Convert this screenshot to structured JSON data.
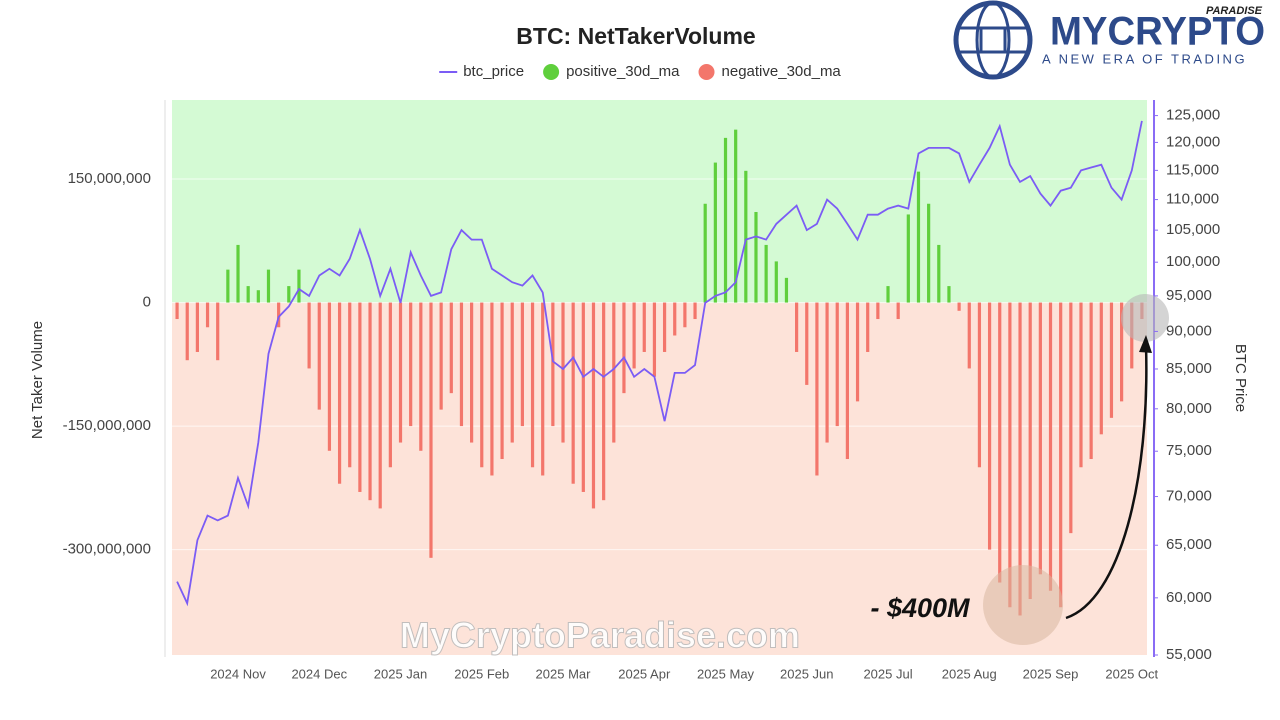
{
  "chart_data": {
    "type": "bar-line",
    "title": "BTC: NetTakerVolume",
    "y_label": "Net Taker Volume",
    "y2_label": "BTC Price",
    "y2_log": true,
    "positive_region_color": "#d4fad4",
    "negative_region_color": "#fde3d9",
    "categories": [
      null,
      null,
      null,
      null,
      null,
      null,
      "2024 Nov",
      null,
      null,
      null,
      null,
      null,
      null,
      null,
      "2024 Dec",
      null,
      null,
      null,
      null,
      null,
      null,
      null,
      "2025 Jan",
      null,
      null,
      null,
      null,
      null,
      null,
      null,
      "2025 Feb",
      null,
      null,
      null,
      null,
      null,
      null,
      null,
      "2025 Mar",
      null,
      null,
      null,
      null,
      null,
      null,
      null,
      "2025 Apr",
      null,
      null,
      null,
      null,
      null,
      null,
      null,
      "2025 May",
      null,
      null,
      null,
      null,
      null,
      null,
      null,
      "2025 Jun",
      null,
      null,
      null,
      null,
      null,
      null,
      null,
      "2025 Jul",
      null,
      null,
      null,
      null,
      null,
      null,
      null,
      "2025 Aug",
      null,
      null,
      null,
      null,
      null,
      null,
      null,
      "2025 Sep",
      null,
      null,
      null,
      null,
      null,
      null,
      null,
      "2025 Oct",
      null
    ],
    "series": [
      {
        "name": "btc_price",
        "color": "#7b5cf5",
        "kind": "line",
        "axis": "y2",
        "values": [
          61500,
          59500,
          65500,
          68000,
          67500,
          68000,
          72000,
          69000,
          76000,
          87000,
          92000,
          93500,
          96000,
          95000,
          98000,
          99000,
          98000,
          100500,
          105000,
          100500,
          95000,
          99000,
          94000,
          101500,
          98000,
          95000,
          95500,
          102000,
          105000,
          103500,
          103500,
          99000,
          98000,
          97000,
          96500,
          98000,
          95500,
          86000,
          85000,
          86500,
          84000,
          85000,
          84000,
          85000,
          86500,
          84000,
          85000,
          84000,
          78500,
          84500,
          84500,
          85500,
          94000,
          95000,
          95500,
          97000,
          103500,
          104000,
          103500,
          106000,
          107500,
          109000,
          105000,
          106000,
          110000,
          108500,
          106000,
          103500,
          107500,
          107500,
          108500,
          109000,
          108500,
          118000,
          119000,
          119000,
          119000,
          118000,
          113000,
          116000,
          119000,
          123000,
          116000,
          113000,
          114000,
          111000,
          109000,
          111500,
          112000,
          115000,
          115500,
          116000,
          112000,
          110000,
          115000,
          124000
        ]
      },
      {
        "name": "positive_30d_ma",
        "color": "#5fcf3c",
        "kind": "bar",
        "values": [
          null,
          null,
          null,
          null,
          null,
          40000000,
          70000000,
          20000000,
          15000000,
          40000000,
          null,
          20000000,
          40000000,
          null,
          null,
          null,
          null,
          null,
          null,
          null,
          null,
          null,
          null,
          null,
          null,
          null,
          null,
          null,
          null,
          null,
          null,
          null,
          null,
          null,
          null,
          null,
          null,
          null,
          null,
          null,
          null,
          null,
          null,
          null,
          null,
          null,
          null,
          null,
          null,
          null,
          null,
          null,
          120000000,
          170000000,
          200000000,
          210000000,
          160000000,
          110000000,
          70000000,
          50000000,
          30000000,
          null,
          null,
          null,
          null,
          null,
          null,
          null,
          null,
          null,
          20000000,
          null,
          107000000,
          159000000,
          120000000,
          70000000,
          20000000,
          null,
          null,
          null,
          null,
          null,
          null,
          null,
          null,
          null,
          null,
          null,
          null,
          null,
          null,
          null,
          null,
          null,
          null,
          null
        ]
      },
      {
        "name": "negative_30d_ma",
        "color": "#f3766b",
        "kind": "bar",
        "values": [
          -20000000,
          -70000000,
          -60000000,
          -30000000,
          -70000000,
          null,
          null,
          null,
          null,
          null,
          -30000000,
          null,
          null,
          -80000000,
          -130000000,
          -180000000,
          -220000000,
          -200000000,
          -230000000,
          -240000000,
          -250000000,
          -200000000,
          -170000000,
          -150000000,
          -180000000,
          -310000000,
          -130000000,
          -110000000,
          -150000000,
          -170000000,
          -200000000,
          -210000000,
          -190000000,
          -170000000,
          -150000000,
          -200000000,
          -210000000,
          -150000000,
          -170000000,
          -220000000,
          -230000000,
          -250000000,
          -240000000,
          -170000000,
          -110000000,
          -80000000,
          -60000000,
          -90000000,
          -60000000,
          -40000000,
          -30000000,
          -20000000,
          null,
          null,
          null,
          null,
          null,
          null,
          null,
          null,
          null,
          -60000000,
          -100000000,
          -210000000,
          -170000000,
          -150000000,
          -190000000,
          -120000000,
          -60000000,
          -20000000,
          null,
          -20000000,
          null,
          null,
          null,
          null,
          null,
          -10000000,
          -80000000,
          -200000000,
          -300000000,
          -340000000,
          -370000000,
          -380000000,
          -360000000,
          -330000000,
          -350000000,
          -370000000,
          -280000000,
          -200000000,
          -190000000,
          -160000000,
          -140000000,
          -120000000,
          -80000000,
          -20000000
        ]
      }
    ],
    "ylim": [
      -428000000,
      246000000
    ],
    "yticks": [
      {
        "value": -300000000,
        "label": "-300,000,000"
      },
      {
        "value": -150000000,
        "label": "-150,000,000"
      },
      0,
      {
        "value": 150000000,
        "label": "150,000,000"
      }
    ],
    "y2lim": [
      55000,
      128000
    ],
    "y2ticks": [
      {
        "value": 55000,
        "label": "55,000"
      },
      {
        "value": 60000,
        "label": "60,000"
      },
      {
        "value": 65000,
        "label": "65,000"
      },
      {
        "value": 70000,
        "label": "70,000"
      },
      {
        "value": 75000,
        "label": "75,000"
      },
      {
        "value": 80000,
        "label": "80,000"
      },
      {
        "value": 85000,
        "label": "85,000"
      },
      {
        "value": 90000,
        "label": "90,000"
      },
      {
        "value": 95000,
        "label": "95,000"
      },
      {
        "value": 100000,
        "label": "100,000"
      },
      {
        "value": 105000,
        "label": "105,000"
      },
      {
        "value": 110000,
        "label": "110,000"
      },
      {
        "value": 115000,
        "label": "115,000"
      },
      {
        "value": 120000,
        "label": "120,000"
      },
      {
        "value": 125000,
        "label": "125,000"
      }
    ],
    "legend": "top",
    "annotations": [
      "- $400M"
    ]
  },
  "branding": {
    "name": "MYCRYPTO",
    "tag": "PARADISE",
    "slogan": "A NEW ERA OF TRADING",
    "watermark": "MyCryptoParadise.com"
  }
}
